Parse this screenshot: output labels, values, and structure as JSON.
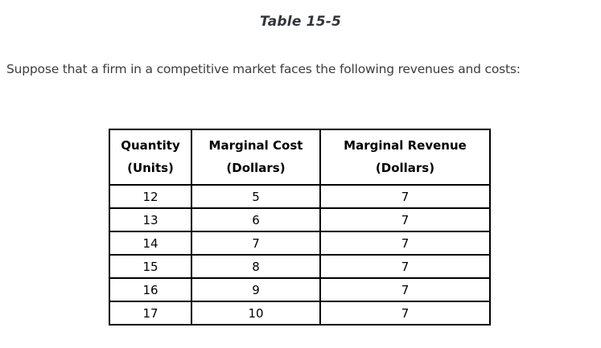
{
  "page": {
    "title": "Table 15-5",
    "intro": "Suppose that a firm in a competitive market faces the following revenues and costs:"
  },
  "table": {
    "headers": [
      {
        "line1": "Quantity",
        "line2": "(Units)"
      },
      {
        "line1": "Marginal Cost",
        "line2": "(Dollars)"
      },
      {
        "line1": "Marginal Revenue",
        "line2": "(Dollars)"
      }
    ],
    "rows": [
      [
        "12",
        "5",
        "7"
      ],
      [
        "13",
        "6",
        "7"
      ],
      [
        "14",
        "7",
        "7"
      ],
      [
        "15",
        "8",
        "7"
      ],
      [
        "16",
        "9",
        "7"
      ],
      [
        "17",
        "10",
        "7"
      ]
    ]
  },
  "colors": {
    "title_text": "#31353c",
    "body_text": "#3d3d3d",
    "table_border": "#000000",
    "background": "#ffffff"
  }
}
